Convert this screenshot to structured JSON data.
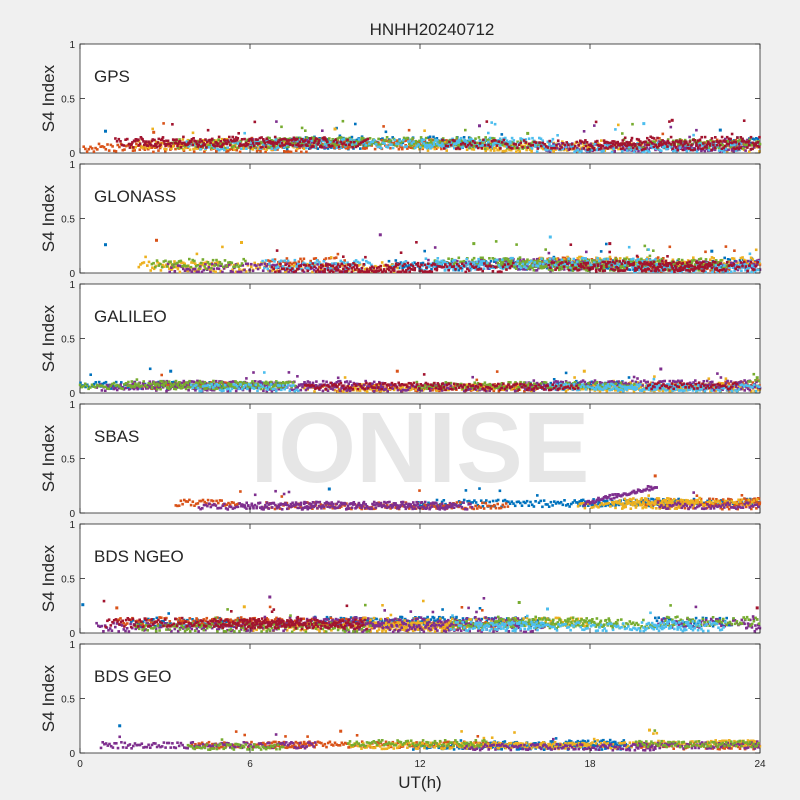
{
  "figure": {
    "title": "HNHH20240712",
    "watermark": "IONISE",
    "xlabel": "UT(h)",
    "xticks": [
      "0",
      "6",
      "12",
      "18",
      "24"
    ],
    "xlim": [
      0,
      24
    ]
  },
  "colors": [
    "#0072BD",
    "#D95319",
    "#EDB120",
    "#7E2F8E",
    "#77AC30",
    "#4DBEEE",
    "#A2142F"
  ],
  "chart_data": [
    {
      "type": "scatter",
      "system": "GPS",
      "ylabel": "S4 Index",
      "ylim": [
        0,
        1
      ],
      "yticks": [
        "0",
        "0.5",
        "1"
      ],
      "xlim": [
        0,
        24
      ],
      "typical_range": [
        0.03,
        0.15
      ],
      "series_count": 7,
      "spikes": [
        {
          "x": 0.9,
          "y": 0.2
        },
        {
          "x": 2.6,
          "y": 0.19
        },
        {
          "x": 9.0,
          "y": 0.22
        },
        {
          "x": 14.1,
          "y": 0.25
        },
        {
          "x": 15.8,
          "y": 0.18
        },
        {
          "x": 19.9,
          "y": 0.27
        },
        {
          "x": 20.9,
          "y": 0.3
        },
        {
          "x": 22.6,
          "y": 0.21
        }
      ]
    },
    {
      "type": "scatter",
      "system": "GLONASS",
      "ylabel": "S4 Index",
      "ylim": [
        0,
        1
      ],
      "yticks": [
        "0",
        "0.5",
        "1"
      ],
      "xlim": [
        0,
        24
      ],
      "typical_range": [
        0.02,
        0.15
      ],
      "series_count": 7,
      "spikes": [
        {
          "x": 0.9,
          "y": 0.26
        },
        {
          "x": 2.7,
          "y": 0.3
        },
        {
          "x": 5.7,
          "y": 0.28
        },
        {
          "x": 10.6,
          "y": 0.35
        },
        {
          "x": 13.9,
          "y": 0.27
        },
        {
          "x": 16.6,
          "y": 0.33
        },
        {
          "x": 18.7,
          "y": 0.27
        },
        {
          "x": 22.3,
          "y": 0.2
        }
      ]
    },
    {
      "type": "scatter",
      "system": "GALILEO",
      "ylabel": "S4 Index",
      "ylim": [
        0,
        1
      ],
      "yticks": [
        "0",
        "0.5",
        "1"
      ],
      "xlim": [
        0,
        24
      ],
      "typical_range": [
        0.03,
        0.12
      ],
      "series_count": 7,
      "spikes": [
        {
          "x": 3.2,
          "y": 0.2
        },
        {
          "x": 11.2,
          "y": 0.2
        },
        {
          "x": 17.8,
          "y": 0.2
        },
        {
          "x": 20.5,
          "y": 0.22
        },
        {
          "x": 23.9,
          "y": 0.14
        }
      ]
    },
    {
      "type": "scatter",
      "system": "SBAS",
      "ylabel": "S4 Index",
      "ylim": [
        0,
        1
      ],
      "yticks": [
        "0",
        "0.5",
        "1"
      ],
      "xlim": [
        0,
        24
      ],
      "typical_range": [
        0.05,
        0.14
      ],
      "series_count": 4,
      "spikes": [
        {
          "x": 8.8,
          "y": 0.22
        },
        {
          "x": 20.3,
          "y": 0.34
        }
      ]
    },
    {
      "type": "scatter",
      "system": "BDS NGEO",
      "ylabel": "S4 Index",
      "ylim": [
        0,
        1
      ],
      "yticks": [
        "0",
        "0.5",
        "1"
      ],
      "xlim": [
        0,
        24
      ],
      "typical_range": [
        0.03,
        0.15
      ],
      "series_count": 7,
      "spikes": [
        {
          "x": 0.1,
          "y": 0.26
        },
        {
          "x": 1.3,
          "y": 0.23
        },
        {
          "x": 5.8,
          "y": 0.24
        },
        {
          "x": 6.7,
          "y": 0.33
        },
        {
          "x": 15.5,
          "y": 0.28
        },
        {
          "x": 16.5,
          "y": 0.22
        },
        {
          "x": 23.9,
          "y": 0.23
        }
      ]
    },
    {
      "type": "scatter",
      "system": "BDS GEO",
      "ylabel": "S4 Index",
      "ylim": [
        0,
        1
      ],
      "yticks": [
        "0",
        "0.5",
        "1"
      ],
      "xlim": [
        0,
        24
      ],
      "typical_range": [
        0.04,
        0.12
      ],
      "series_count": 5,
      "spikes": [
        {
          "x": 1.4,
          "y": 0.25
        },
        {
          "x": 9.2,
          "y": 0.2
        },
        {
          "x": 20.1,
          "y": 0.21
        }
      ]
    }
  ]
}
